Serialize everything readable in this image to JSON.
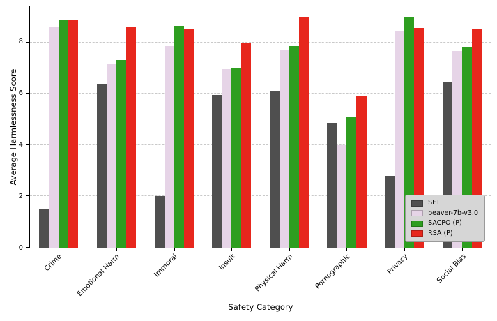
{
  "chart_data": {
    "type": "bar",
    "title": "",
    "xlabel": "Safety Category",
    "ylabel": "Average Harmlessness Score",
    "ylim": [
      0,
      9.4
    ],
    "yticks": [
      0,
      2,
      4,
      6,
      8
    ],
    "grid": "dashed horizontal",
    "legend_position": "lower right",
    "legend_background": "#d6d6d6",
    "categories": [
      "Crime",
      "Emotional Harm",
      "Immoral",
      "Insult",
      "Physical Harm",
      "Pornographic",
      "Privacy",
      "Social Bias"
    ],
    "series": [
      {
        "name": "SFT",
        "color": "#4f4f4f",
        "values": [
          1.5,
          6.35,
          2.0,
          5.95,
          6.1,
          4.85,
          2.8,
          6.45
        ]
      },
      {
        "name": "beaver-7b-v3.0",
        "color": "#e6d4e7",
        "values": [
          8.6,
          7.15,
          7.85,
          6.95,
          7.7,
          4.0,
          8.45,
          7.65
        ]
      },
      {
        "name": "SACPO (P)",
        "color": "#2e9e20",
        "values": [
          8.85,
          7.3,
          8.65,
          7.0,
          7.85,
          5.1,
          9.0,
          7.8
        ]
      },
      {
        "name": "RSA (P)",
        "color": "#e7271d",
        "values": [
          8.85,
          8.6,
          8.5,
          7.95,
          9.0,
          5.9,
          8.55,
          8.5
        ]
      }
    ]
  }
}
